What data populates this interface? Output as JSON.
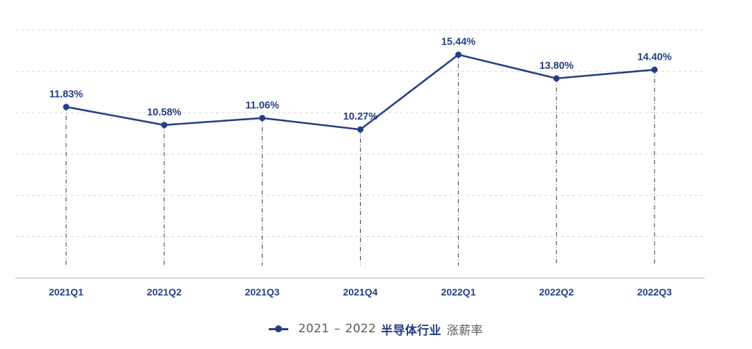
{
  "chart_data": {
    "type": "line",
    "categories": [
      "2021Q1",
      "2021Q2",
      "2021Q3",
      "2021Q4",
      "2022Q1",
      "2022Q2",
      "2022Q3"
    ],
    "series": [
      {
        "name": "2021 - 2022 半导体行业 涨薪率",
        "values": [
          11.83,
          10.58,
          11.06,
          10.27,
          15.44,
          13.8,
          14.4
        ],
        "labels": [
          "11.83%",
          "10.58%",
          "11.06%",
          "10.27%",
          "15.44%",
          "13.80%",
          "14.40%"
        ]
      }
    ],
    "ylim": [
      0,
      17.2
    ],
    "gridlines": [
      0,
      2.86,
      5.71,
      8.57,
      11.43,
      14.29,
      17.15
    ],
    "grid": true,
    "legend_position": "bottom-center",
    "colors": {
      "line": "#253f86",
      "label": "#253f86",
      "grid": "#d6d6d6",
      "axis": "#c8c8c8",
      "drop_line": "#333333"
    }
  },
  "legend": {
    "years": "2021",
    "dash": "–",
    "years_end": "2022",
    "industry": "半导体行业",
    "metric": "涨薪率"
  }
}
